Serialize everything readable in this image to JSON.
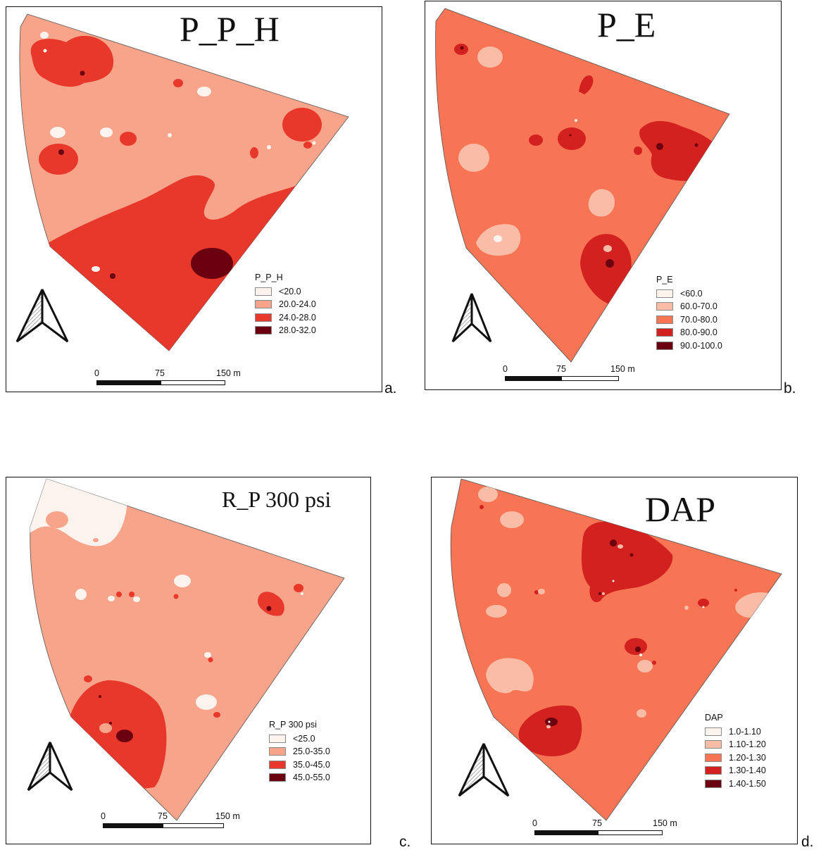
{
  "panels": [
    {
      "id": "a",
      "title": "P_P_H",
      "legend_title": "P_P_H",
      "legend": [
        {
          "label": "<20.0",
          "color": "#fdf3ee"
        },
        {
          "label": "20.0-24.0",
          "color": "#f7a48a"
        },
        {
          "label": "24.0-28.0",
          "color": "#e8382b"
        },
        {
          "label": "28.0-32.0",
          "color": "#6b0010"
        }
      ],
      "scale": {
        "ticks": [
          "0",
          "75",
          "150 m"
        ]
      },
      "panel_label": "a."
    },
    {
      "id": "b",
      "title": "P_E",
      "legend_title": "P_E",
      "legend": [
        {
          "label": "<60.0",
          "color": "#fdf3ee"
        },
        {
          "label": "60.0-70.0",
          "color": "#f8bca7"
        },
        {
          "label": "70.0-80.0",
          "color": "#f77555"
        },
        {
          "label": "80.0-90.0",
          "color": "#d3211f"
        },
        {
          "label": "90.0-100.0",
          "color": "#6b0010"
        }
      ],
      "scale": {
        "ticks": [
          "0",
          "75",
          "150 m"
        ]
      },
      "panel_label": "b."
    },
    {
      "id": "c",
      "title": "R_P 300 psi",
      "legend_title": "R_P 300 psi",
      "legend": [
        {
          "label": "<25.0",
          "color": "#fdf3ee"
        },
        {
          "label": "25.0-35.0",
          "color": "#f7a48a"
        },
        {
          "label": "35.0-45.0",
          "color": "#e8382b"
        },
        {
          "label": "45.0-55.0",
          "color": "#6b0010"
        }
      ],
      "scale": {
        "ticks": [
          "0",
          "75",
          "150 m"
        ]
      },
      "panel_label": "c."
    },
    {
      "id": "d",
      "title": "DAP",
      "legend_title": "DAP",
      "legend": [
        {
          "label": "1.0-1.10",
          "color": "#fdf3ee"
        },
        {
          "label": "1.10-1.20",
          "color": "#f8bca7"
        },
        {
          "label": "1.20-1.30",
          "color": "#f77555"
        },
        {
          "label": "1.30-1.40",
          "color": "#d3211f"
        },
        {
          "label": "1.40-1.50",
          "color": "#6b0010"
        }
      ],
      "scale": {
        "ticks": [
          "0",
          "75",
          "150 m"
        ]
      },
      "panel_label": "d."
    }
  ]
}
